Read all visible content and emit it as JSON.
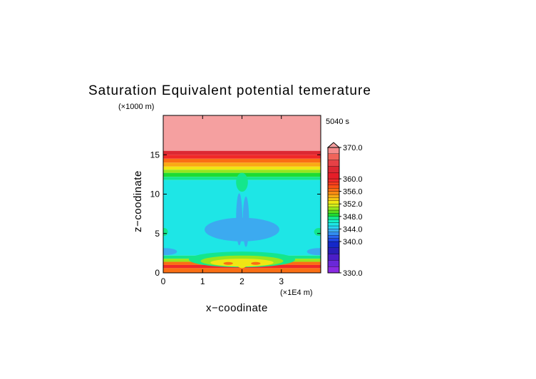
{
  "chart_data": {
    "type": "heatmap",
    "title": "Saturation Equivalent potential temerature",
    "time_label": "5040 s",
    "xlabel": "x−coodinate",
    "ylabel": "z−coodinate",
    "x_unit": "(×1E4 m)",
    "y_unit": "(×1000 m)",
    "xlim": [
      0,
      4
    ],
    "ylim": [
      0,
      20
    ],
    "x_ticks": [
      {
        "value": 0,
        "label": "0"
      },
      {
        "value": 1,
        "label": "1"
      },
      {
        "value": 2,
        "label": "2"
      },
      {
        "value": 3,
        "label": "3"
      }
    ],
    "y_ticks": [
      {
        "value": 0,
        "label": "0"
      },
      {
        "value": 5,
        "label": "5"
      },
      {
        "value": 10,
        "label": "10"
      },
      {
        "value": 15,
        "label": "15"
      }
    ],
    "colorbar": {
      "min": 330,
      "max": 370,
      "labels": [
        {
          "value": 370,
          "label": "370.0"
        },
        {
          "value": 360,
          "label": "360.0"
        },
        {
          "value": 356,
          "label": "356.0"
        },
        {
          "value": 352,
          "label": "352.0"
        },
        {
          "value": 348,
          "label": "348.0"
        },
        {
          "value": 344,
          "label": "344.0"
        },
        {
          "value": 340,
          "label": "340.0"
        },
        {
          "value": 330,
          "label": "330.0"
        }
      ],
      "levels": [
        {
          "value": 330,
          "color": "#8a2be2"
        },
        {
          "value": 332,
          "color": "#6a28d8"
        },
        {
          "value": 334,
          "color": "#4b1ec8"
        },
        {
          "value": 336,
          "color": "#2a1eb8"
        },
        {
          "value": 338,
          "color": "#1428c8"
        },
        {
          "value": 340,
          "color": "#1e46e6"
        },
        {
          "value": 341,
          "color": "#2864f0"
        },
        {
          "value": 342,
          "color": "#328cf0"
        },
        {
          "value": 343,
          "color": "#3caaf0"
        },
        {
          "value": 344,
          "color": "#28d2f0"
        },
        {
          "value": 345,
          "color": "#1ee6e6"
        },
        {
          "value": 346,
          "color": "#14f0c8"
        },
        {
          "value": 347,
          "color": "#14e68c"
        },
        {
          "value": 348,
          "color": "#1edc32"
        },
        {
          "value": 349,
          "color": "#5adc1e"
        },
        {
          "value": 350,
          "color": "#96e61e"
        },
        {
          "value": 351,
          "color": "#d2f01e"
        },
        {
          "value": 352,
          "color": "#f0e614"
        },
        {
          "value": 353,
          "color": "#f5c814"
        },
        {
          "value": 354,
          "color": "#faaa14"
        },
        {
          "value": 355,
          "color": "#fa8c14"
        },
        {
          "value": 356,
          "color": "#fa6e14"
        },
        {
          "value": 357,
          "color": "#fa5014"
        },
        {
          "value": 358,
          "color": "#f53c1e"
        },
        {
          "value": 359,
          "color": "#f02828"
        },
        {
          "value": 360,
          "color": "#e61e28"
        },
        {
          "value": 362,
          "color": "#dc2832"
        },
        {
          "value": 364,
          "color": "#e64146"
        },
        {
          "value": 366,
          "color": "#f0645a"
        },
        {
          "value": 368,
          "color": "#f58c8c"
        },
        {
          "value": 370,
          "color": "#f5a0a0"
        }
      ]
    },
    "horizontal_bands": [
      {
        "z_from": 15.5,
        "z_to": 20,
        "value": 369,
        "color": "#f5a0a0"
      },
      {
        "z_from": 15.0,
        "z_to": 15.5,
        "value": 362,
        "color": "#dc2832"
      },
      {
        "z_from": 14.5,
        "z_to": 15.0,
        "value": 359,
        "color": "#f02828"
      },
      {
        "z_from": 14.0,
        "z_to": 14.5,
        "value": 356,
        "color": "#fa6e14"
      },
      {
        "z_from": 13.5,
        "z_to": 14.0,
        "value": 354,
        "color": "#faaa14"
      },
      {
        "z_from": 13.1,
        "z_to": 13.5,
        "value": 352,
        "color": "#f0e614"
      },
      {
        "z_from": 12.7,
        "z_to": 13.1,
        "value": 351,
        "color": "#96e61e"
      },
      {
        "z_from": 12.2,
        "z_to": 12.7,
        "value": 348,
        "color": "#1edc32"
      },
      {
        "z_from": 11.8,
        "z_to": 12.2,
        "value": 347,
        "color": "#14e68c"
      },
      {
        "z_from": 2.2,
        "z_to": 11.8,
        "value": 345,
        "color": "#1ee6e6"
      },
      {
        "z_from": 1.8,
        "z_to": 2.2,
        "value": 347,
        "color": "#14e68c"
      },
      {
        "z_from": 1.4,
        "z_to": 1.8,
        "value": 350,
        "color": "#96e61e"
      },
      {
        "z_from": 1.0,
        "z_to": 1.4,
        "value": 356,
        "color": "#fa6e14"
      },
      {
        "z_from": 0.6,
        "z_to": 1.0,
        "value": 359,
        "color": "#f02828"
      },
      {
        "z_from": 0,
        "z_to": 0.6,
        "value": 356,
        "color": "#fa6e14"
      }
    ],
    "features": [
      {
        "kind": "low-region",
        "x_center": 2.0,
        "z_center": 5.5,
        "x_radius": 0.95,
        "z_radius": 1.5,
        "value": 343,
        "color": "#3caaf0"
      },
      {
        "kind": "low-spike",
        "x_center": 1.93,
        "z_center": 6.8,
        "x_radius": 0.08,
        "z_radius": 3.3,
        "value": 343,
        "color": "#3caaf0"
      },
      {
        "kind": "low-spike",
        "x_center": 2.1,
        "z_center": 6.5,
        "x_radius": 0.08,
        "z_radius": 3.2,
        "value": 343,
        "color": "#3caaf0"
      },
      {
        "kind": "low-region",
        "x_center": 0.05,
        "z_center": 2.7,
        "x_radius": 0.3,
        "z_radius": 0.45,
        "value": 343,
        "color": "#3caaf0"
      },
      {
        "kind": "low-region",
        "x_center": 3.95,
        "z_center": 2.7,
        "x_radius": 0.3,
        "z_radius": 0.45,
        "value": 343,
        "color": "#3caaf0"
      },
      {
        "kind": "warm-bulge",
        "x_center": 2.0,
        "z_center": 1.7,
        "x_radius": 1.35,
        "z_radius": 1.0,
        "value": 347,
        "color": "#14e68c"
      },
      {
        "kind": "warm-bulge",
        "x_center": 2.0,
        "z_center": 1.5,
        "x_radius": 1.05,
        "z_radius": 0.7,
        "value": 350,
        "color": "#96e61e"
      },
      {
        "kind": "warm-bulge",
        "x_center": 2.0,
        "z_center": 1.3,
        "x_radius": 0.8,
        "z_radius": 0.5,
        "value": 352,
        "color": "#f0e614"
      },
      {
        "kind": "warm-core",
        "x_center": 1.65,
        "z_center": 1.2,
        "x_radius": 0.12,
        "z_radius": 0.18,
        "value": 356,
        "color": "#fa6e14"
      },
      {
        "kind": "warm-core",
        "x_center": 2.35,
        "z_center": 1.2,
        "x_radius": 0.12,
        "z_radius": 0.18,
        "value": 356,
        "color": "#fa6e14"
      },
      {
        "kind": "warm-core",
        "x_center": 2.0,
        "z_center": 0.9,
        "x_radius": 0.1,
        "z_radius": 0.3,
        "value": 352,
        "color": "#f0e614"
      },
      {
        "kind": "side-patch",
        "x_center": 3.95,
        "z_center": 5.2,
        "x_radius": 0.12,
        "z_radius": 0.5,
        "value": 347,
        "color": "#14e68c"
      },
      {
        "kind": "side-patch",
        "x_center": 0.02,
        "z_center": 5.2,
        "x_radius": 0.1,
        "z_radius": 0.5,
        "value": 347,
        "color": "#14e68c"
      },
      {
        "kind": "column-glow",
        "x_center": 2.0,
        "z_center": 11.5,
        "x_radius": 0.15,
        "z_radius": 1.2,
        "value": 347,
        "color": "#14e68c"
      }
    ]
  }
}
